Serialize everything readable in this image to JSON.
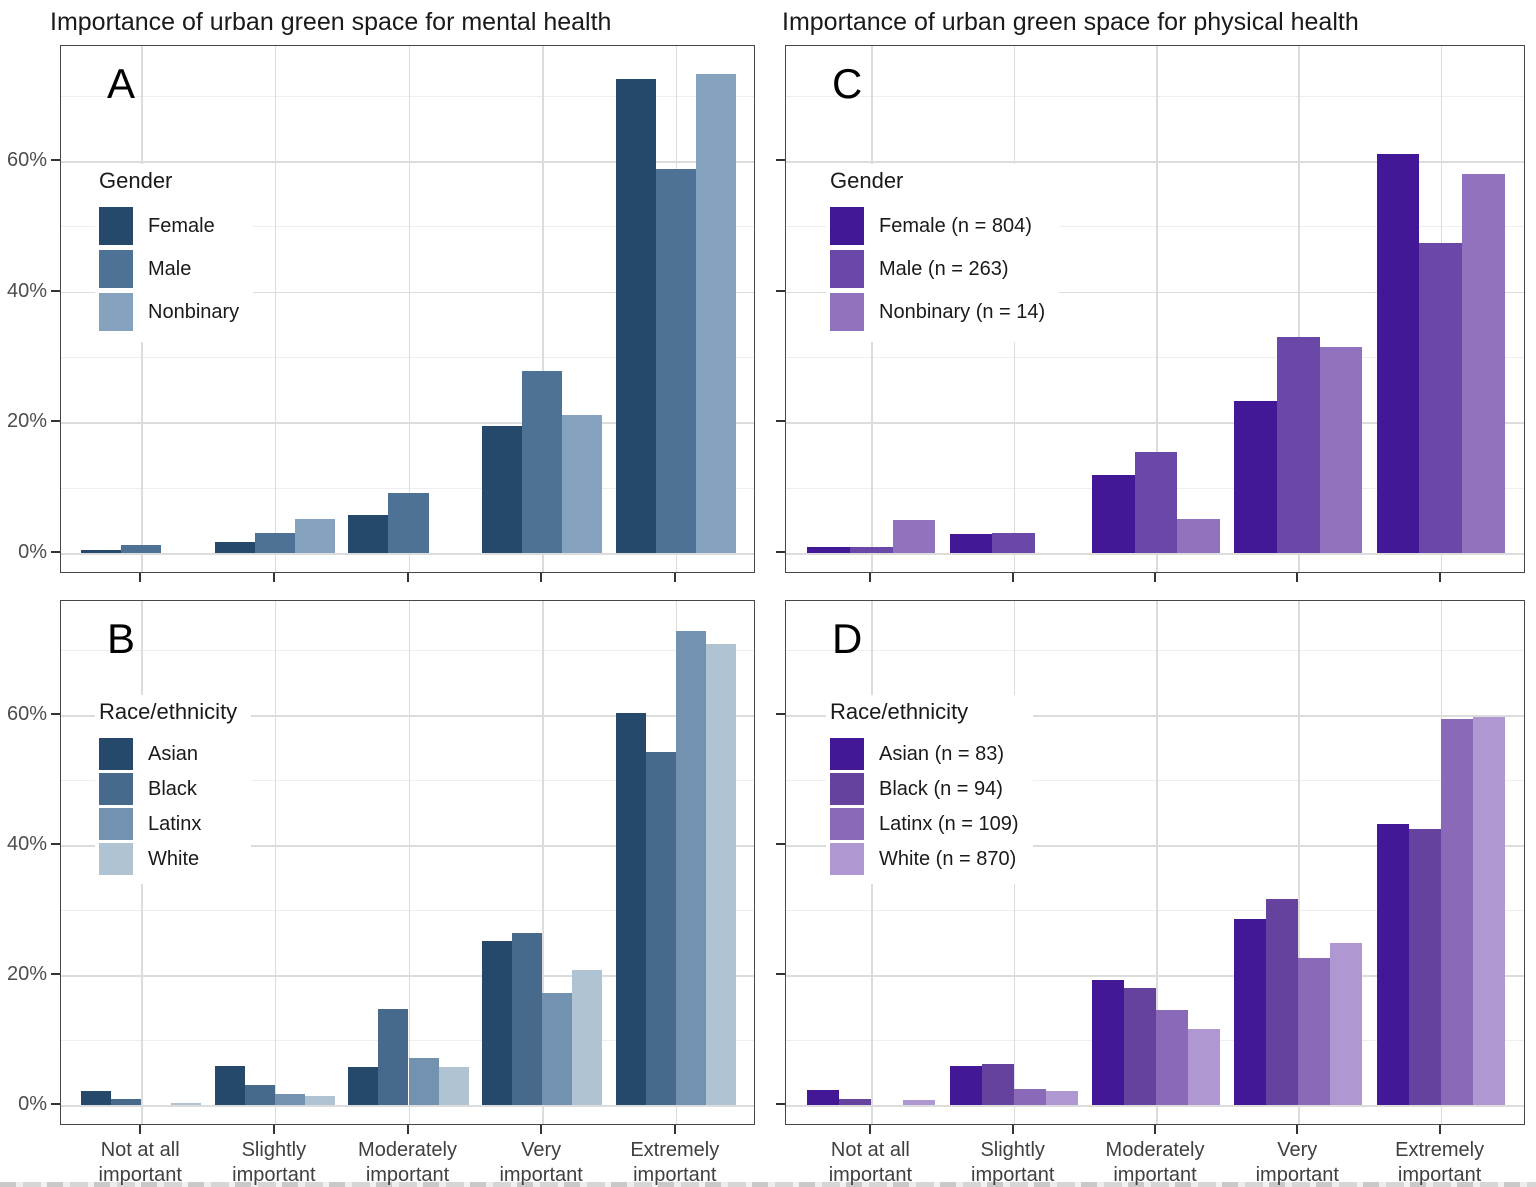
{
  "figure": {
    "title_left": "Importance of urban green space for mental health",
    "title_right": "Importance of urban green space for physical health"
  },
  "y_axis": {
    "tick_labels": [
      "0%",
      "20%",
      "40%",
      "60%"
    ],
    "tick_values": [
      0,
      20,
      40,
      60
    ],
    "minor_gridlines": [
      10,
      30,
      50,
      70
    ],
    "unit": "%"
  },
  "x_axis": {
    "categories": [
      "Not at all\nimportant",
      "Slightly\nimportant",
      "Moderately\nimportant",
      "Very\nimportant",
      "Extremely\nimportant"
    ]
  },
  "chart_data": [
    {
      "type": "bar",
      "panel_label": "A",
      "title": "Importance of urban green space for mental health",
      "legend_title": "Gender",
      "legend_position": "upper-left",
      "categories": [
        "Not at all important",
        "Slightly important",
        "Moderately important",
        "Very important",
        "Extremely important"
      ],
      "ylim": [
        0,
        77.5
      ],
      "series": [
        {
          "name": "Female",
          "color": "#26486B",
          "values": [
            0.4,
            1.7,
            5.8,
            19.5,
            72.5
          ]
        },
        {
          "name": "Male",
          "color": "#4D7296",
          "values": [
            1.2,
            3.1,
            9.2,
            27.8,
            58.8
          ]
        },
        {
          "name": "Nonbinary",
          "color": "#85A2BE",
          "values": [
            0,
            5.2,
            0,
            21.2,
            73.3
          ]
        }
      ]
    },
    {
      "type": "bar",
      "panel_label": "B",
      "title": "Importance of urban green space for mental health",
      "legend_title": "Race/ethnicity",
      "legend_position": "upper-left",
      "categories": [
        "Not at all important",
        "Slightly important",
        "Moderately important",
        "Very important",
        "Extremely important"
      ],
      "ylim": [
        0,
        77.5
      ],
      "series": [
        {
          "name": "Asian",
          "color": "#26486B",
          "values": [
            2.2,
            6.0,
            5.9,
            25.2,
            60.3
          ]
        },
        {
          "name": "Black",
          "color": "#46698C",
          "values": [
            1.0,
            3.1,
            14.8,
            26.5,
            54.3
          ]
        },
        {
          "name": "Latinx",
          "color": "#7392AF",
          "values": [
            0,
            1.7,
            7.2,
            17.3,
            73.0
          ]
        },
        {
          "name": "White",
          "color": "#AFC3D3",
          "values": [
            0.3,
            1.4,
            5.9,
            20.8,
            71.0
          ]
        }
      ]
    },
    {
      "type": "bar",
      "panel_label": "C",
      "title": "Importance of urban green space for physical health",
      "legend_title": "Gender",
      "legend_position": "upper-left",
      "categories": [
        "Not at all important",
        "Slightly important",
        "Moderately important",
        "Very important",
        "Extremely important"
      ],
      "ylim": [
        0,
        77.5
      ],
      "series": [
        {
          "name": "Female (n = 804)",
          "color": "#431896",
          "values": [
            1.0,
            2.9,
            11.9,
            23.2,
            61.0
          ]
        },
        {
          "name": "Male (n = 263)",
          "color": "#6A48A8",
          "values": [
            1.0,
            3.0,
            15.5,
            33.0,
            47.5
          ]
        },
        {
          "name": "Nonbinary (n = 14)",
          "color": "#9173BD",
          "values": [
            5.1,
            0,
            5.2,
            31.6,
            58.0
          ]
        }
      ]
    },
    {
      "type": "bar",
      "panel_label": "D",
      "title": "Importance of urban green space for physical health",
      "legend_title": "Race/ethnicity",
      "legend_position": "upper-left",
      "categories": [
        "Not at all important",
        "Slightly important",
        "Moderately important",
        "Very important",
        "Extremely important"
      ],
      "ylim": [
        0,
        77.5
      ],
      "series": [
        {
          "name": "Asian (n = 83)",
          "color": "#431896",
          "values": [
            2.3,
            6.0,
            19.3,
            28.6,
            43.3
          ]
        },
        {
          "name": "Black (n = 94)",
          "color": "#66429F",
          "values": [
            1.0,
            6.3,
            18.0,
            31.8,
            42.5
          ]
        },
        {
          "name": "Latinx (n = 109)",
          "color": "#8A69B8",
          "values": [
            0,
            2.5,
            14.6,
            22.7,
            59.5
          ]
        },
        {
          "name": "White (n = 870)",
          "color": "#AF97D1",
          "values": [
            0.8,
            2.2,
            11.8,
            25.0,
            59.8
          ]
        }
      ]
    }
  ]
}
